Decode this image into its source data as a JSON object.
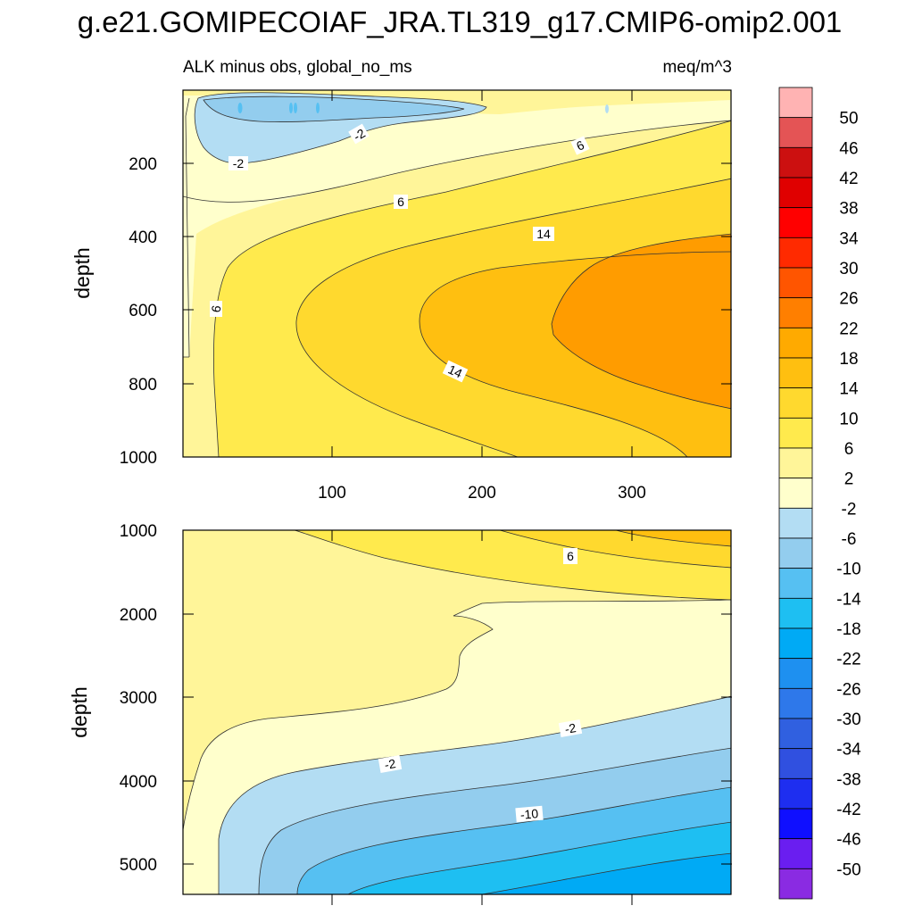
{
  "chart_data": {
    "type": "contour",
    "title": "g.e21.GOMIPECOIAF_JRA.TL319_g17.CMIP6-omip2.001",
    "subtitle_left": "ALK minus obs, global_no_ms",
    "subtitle_right": "meq/m^3",
    "ylabel": "depth",
    "xticks": [
      "100",
      "200",
      "300"
    ],
    "x_range": [
      0,
      365
    ],
    "upper_panel": {
      "depth_range": [
        0,
        1000
      ],
      "yticks": [
        "200",
        "400",
        "600",
        "800",
        "1000"
      ],
      "contour_labels": [
        "-2",
        "-2",
        "6",
        "6",
        "14",
        "6",
        "14"
      ]
    },
    "lower_panel": {
      "depth_range": [
        1000,
        5375
      ],
      "yticks": [
        "1000",
        "2000",
        "3000",
        "4000",
        "5000"
      ],
      "contour_labels": [
        "6",
        "-2",
        "-2",
        "-10"
      ]
    },
    "colorbar": {
      "labels": [
        "50",
        "46",
        "42",
        "38",
        "34",
        "30",
        "26",
        "22",
        "18",
        "14",
        "10",
        "6",
        "2",
        "-2",
        "-6",
        "-10",
        "-14",
        "-18",
        "-22",
        "-26",
        "-30",
        "-34",
        "-38",
        "-42",
        "-46",
        "-50"
      ],
      "colors_top_to_bottom": [
        "#ffb3b3",
        "#e45455",
        "#cc1010",
        "#e00000",
        "#ff0000",
        "#ff2a00",
        "#ff5500",
        "#ff7f00",
        "#ffaa00",
        "#ffbf10",
        "#ffd92e",
        "#ffea4d",
        "#fff599",
        "#ffffcc",
        "#b3ddf3",
        "#93cdee",
        "#56c0f2",
        "#1ebff2",
        "#00aaf5",
        "#1e90f0",
        "#2e78ea",
        "#3060e0",
        "#3050e0",
        "#1e2ef0",
        "#0f0fff",
        "#6a1ef0",
        "#8a2be2"
      ]
    }
  }
}
